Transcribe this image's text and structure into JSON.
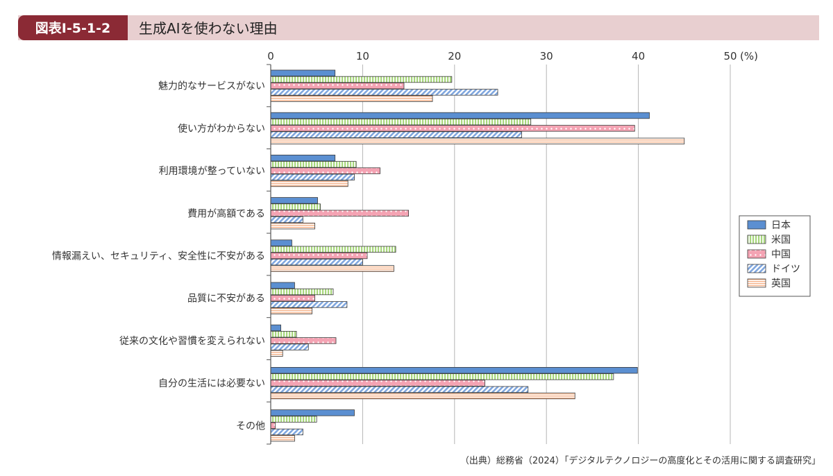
{
  "header": {
    "fig_id": "図表Ⅰ-5-1-2",
    "title": "生成AIを使わない理由"
  },
  "source": "（出典）総務省（2024）「デジタルテクノロジーの高度化とその活用に関する調査研究」",
  "colors": {
    "header_band": "#e8cfd0",
    "header_badge": "#8b2a35",
    "grid": "#b5b5b5",
    "axis": "#555555"
  },
  "chart_data": {
    "type": "bar",
    "orientation": "horizontal",
    "title": "生成AIを使わない理由",
    "x_unit_label": "(%)",
    "xlim": [
      0,
      50
    ],
    "x_ticks": [
      0,
      10,
      20,
      30,
      40,
      50
    ],
    "grid": true,
    "legend_position": "right",
    "categories": [
      "魅力的なサービスがない",
      "使い方がわからない",
      "利用環境が整っていない",
      "費用が高額である",
      "情報漏えい、セキュリティ、安全性に不安がある",
      "品質に不安がある",
      "従来の文化や習慣を変えられない",
      "自分の生活には必要ない",
      "その他"
    ],
    "series": [
      {
        "name": "日本",
        "color": "#5b8fd1",
        "pattern": "solid",
        "values": [
          7.0,
          41.2,
          7.0,
          5.1,
          2.3,
          2.6,
          1.1,
          39.9,
          9.1
        ]
      },
      {
        "name": "米国",
        "color": "#a7d67c",
        "pattern": "vertical-stripes",
        "values": [
          19.7,
          28.3,
          9.3,
          5.4,
          13.6,
          6.8,
          2.8,
          37.3,
          5.0
        ]
      },
      {
        "name": "中国",
        "color": "#f4a3b3",
        "pattern": "dots",
        "values": [
          14.5,
          39.6,
          11.9,
          15.0,
          10.5,
          4.8,
          7.1,
          23.3,
          0.5
        ]
      },
      {
        "name": "ドイツ",
        "color": "#8eb3e6",
        "pattern": "diagonal-stripes",
        "values": [
          24.7,
          27.3,
          9.1,
          3.5,
          10.0,
          8.3,
          4.1,
          28.0,
          3.5
        ]
      },
      {
        "name": "英国",
        "color": "#f6b58e",
        "pattern": "horizontal-stripes",
        "values": [
          17.6,
          45.0,
          8.4,
          4.8,
          13.4,
          4.5,
          1.3,
          33.1,
          2.6
        ]
      }
    ]
  }
}
